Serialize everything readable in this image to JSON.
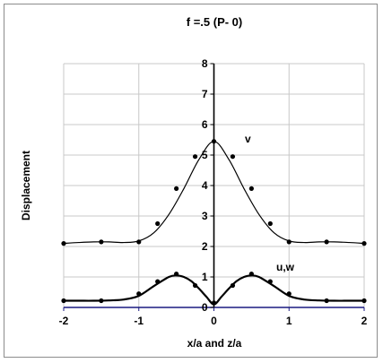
{
  "chart_data": {
    "type": "line",
    "title": "f =.5  (P- 0)",
    "xlabel": "x/a  and  z/a",
    "ylabel": "Displacement",
    "xlim": [
      -2,
      2
    ],
    "ylim": [
      0,
      8
    ],
    "x_ticks": [
      "-2",
      "-1",
      "0",
      "1",
      "2"
    ],
    "y_ticks": [
      "0",
      "1",
      "2",
      "3",
      "4",
      "5",
      "6",
      "7",
      "8"
    ],
    "grid": true,
    "legend": "none",
    "series": [
      {
        "name": "v",
        "curve": {
          "x": [
            -2,
            -1.8,
            -1.6,
            -1.4,
            -1.2,
            -1.0,
            -0.8,
            -0.6,
            -0.4,
            -0.2,
            0.0,
            0.2,
            0.4,
            0.6,
            0.8,
            1.0,
            1.2,
            1.4,
            1.6,
            1.8,
            2.0
          ],
          "y": [
            2.1,
            2.13,
            2.15,
            2.15,
            2.13,
            2.18,
            2.45,
            3.05,
            3.9,
            4.85,
            5.45,
            4.85,
            3.9,
            3.05,
            2.45,
            2.18,
            2.13,
            2.15,
            2.15,
            2.13,
            2.1
          ]
        },
        "points": {
          "x": [
            -2,
            -1.5,
            -1,
            -0.75,
            -0.5,
            -0.25,
            0,
            0.25,
            0.5,
            0.75,
            1,
            1.5,
            2
          ],
          "y": [
            2.1,
            2.15,
            2.15,
            2.75,
            3.9,
            4.95,
            5.45,
            4.95,
            3.9,
            2.75,
            2.15,
            2.15,
            2.1
          ]
        }
      },
      {
        "name": "u,w",
        "curve": {
          "x": [
            -2,
            -1.8,
            -1.6,
            -1.4,
            -1.2,
            -1.0,
            -0.8,
            -0.6,
            -0.5,
            -0.4,
            -0.3,
            -0.2,
            -0.1,
            0.0,
            0.1,
            0.2,
            0.3,
            0.4,
            0.5,
            0.6,
            0.8,
            1.0,
            1.2,
            1.4,
            1.6,
            1.8,
            2.0
          ],
          "y": [
            0.22,
            0.22,
            0.22,
            0.23,
            0.26,
            0.38,
            0.7,
            1.0,
            1.05,
            1.0,
            0.86,
            0.62,
            0.35,
            0.1,
            0.35,
            0.62,
            0.86,
            1.0,
            1.05,
            1.0,
            0.7,
            0.38,
            0.26,
            0.23,
            0.22,
            0.22,
            0.22
          ]
        },
        "points": {
          "x": [
            -2,
            -1.5,
            -1,
            -0.75,
            -0.5,
            -0.25,
            0,
            0.25,
            0.5,
            0.75,
            1,
            1.5,
            2
          ],
          "y": [
            0.22,
            0.22,
            0.45,
            0.85,
            1.1,
            0.72,
            0.15,
            0.72,
            1.1,
            0.85,
            0.45,
            0.22,
            0.22
          ]
        }
      }
    ]
  }
}
